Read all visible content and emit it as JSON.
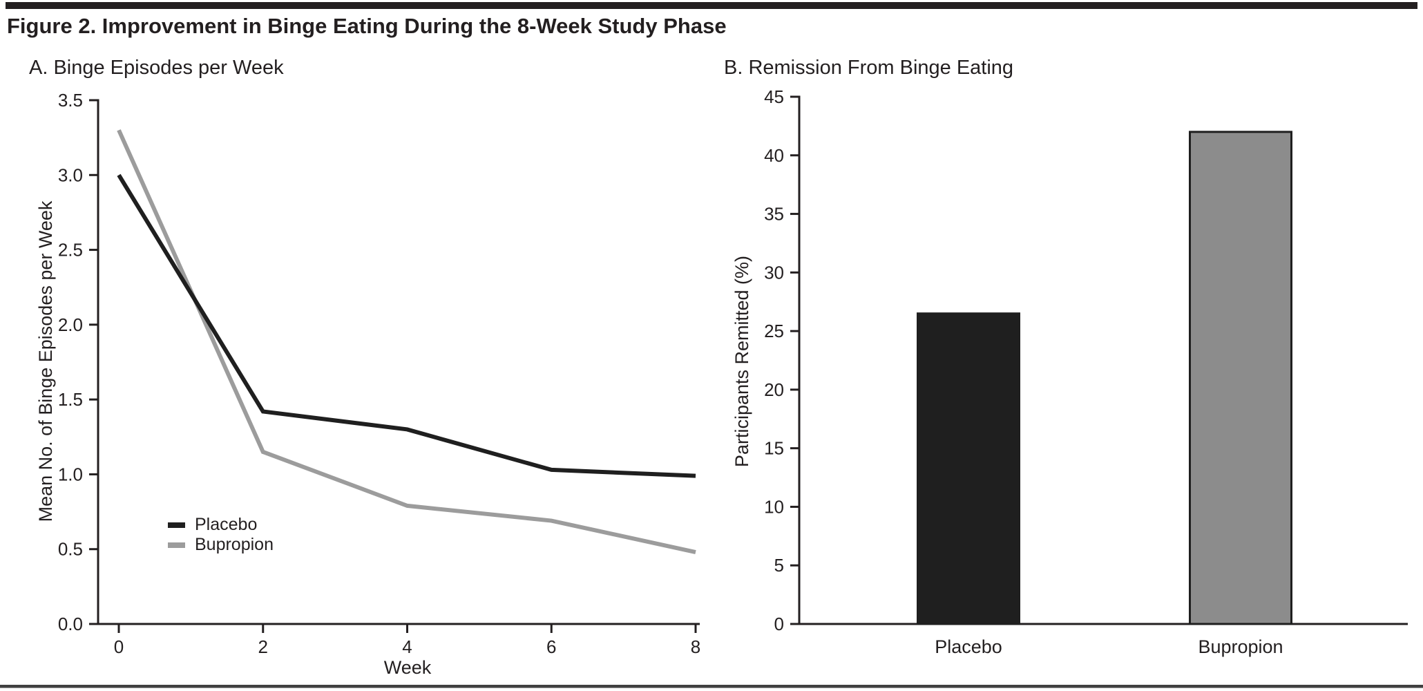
{
  "figure": {
    "title": "Figure 2. Improvement in Binge Eating During the 8-Week Study Phase"
  },
  "panel_a": {
    "title": "A. Binge Episodes per Week",
    "ylabel": "Mean No. of Binge Episodes per Week",
    "xlabel": "Week"
  },
  "panel_b": {
    "title": "B. Remission From Binge Eating",
    "ylabel": "Participants Remitted (%)"
  },
  "colors": {
    "black_series": "#1f1f1f",
    "gray_series": "#9c9c9c",
    "gray_bar": "#8c8c8c",
    "axis": "#231f20",
    "text": "#231f20"
  },
  "chart_data": [
    {
      "type": "line",
      "title": "A. Binge Episodes per Week",
      "xlabel": "Week",
      "ylabel": "Mean No. of Binge Episodes per Week",
      "x": [
        0,
        2,
        4,
        6,
        8
      ],
      "xticks": [
        0,
        2,
        4,
        6,
        8
      ],
      "yticks": [
        "0.0",
        "0.5",
        "1.0",
        "1.5",
        "2.0",
        "2.5",
        "3.0",
        "3.5"
      ],
      "xlim": [
        0,
        8
      ],
      "ylim": [
        0,
        3.5
      ],
      "grid": false,
      "legend_position": "lower-left",
      "series": [
        {
          "name": "Placebo",
          "color": "#1f1f1f",
          "values": [
            3.0,
            1.42,
            1.3,
            1.03,
            0.99
          ]
        },
        {
          "name": "Bupropion",
          "color": "#9c9c9c",
          "values": [
            3.3,
            1.15,
            0.79,
            0.69,
            0.48
          ]
        }
      ]
    },
    {
      "type": "bar",
      "title": "B. Remission From Binge Eating",
      "xlabel": "",
      "ylabel": "Participants Remitted (%)",
      "categories": [
        "Placebo",
        "Bupropion"
      ],
      "values": [
        26.5,
        42
      ],
      "bar_colors": [
        "#1f1f1f",
        "#8c8c8c"
      ],
      "yticks": [
        0,
        5,
        10,
        15,
        20,
        25,
        30,
        35,
        40,
        45
      ],
      "ylim": [
        0,
        45
      ],
      "grid": false,
      "legend_position": "none"
    }
  ]
}
